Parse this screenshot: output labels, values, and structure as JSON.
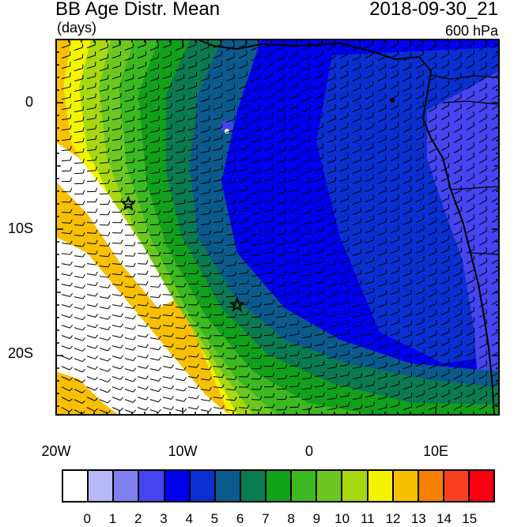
{
  "header": {
    "title": "BB Age Distr. Mean",
    "units": "(days)",
    "datetime": "2018-09-30_21",
    "level": "600 hPa"
  },
  "axes": {
    "lat_labels": [
      "0",
      "10S",
      "20S"
    ],
    "lon_labels": [
      "20W",
      "10W",
      "0",
      "10E"
    ]
  },
  "colorbar": {
    "labels": [
      "0",
      "1",
      "2",
      "3",
      "4",
      "5",
      "6",
      "7",
      "8",
      "9",
      "10",
      "11",
      "12",
      "13",
      "14",
      "15"
    ],
    "colors": [
      "#ffffff",
      "#b8b8f6",
      "#8080f2",
      "#4444f0",
      "#0000ee",
      "#0a2fd0",
      "#0a5a8c",
      "#0a7a50",
      "#10a01a",
      "#3cb820",
      "#6cc820",
      "#a8d810",
      "#f4f400",
      "#f8c000",
      "#f88000",
      "#f84020",
      "#f80010"
    ]
  },
  "markers": [
    {
      "name": "star-marker",
      "lon": -14.3,
      "lat": -8.0
    },
    {
      "name": "star-marker",
      "lon": -5.7,
      "lat": -16.0
    }
  ]
}
